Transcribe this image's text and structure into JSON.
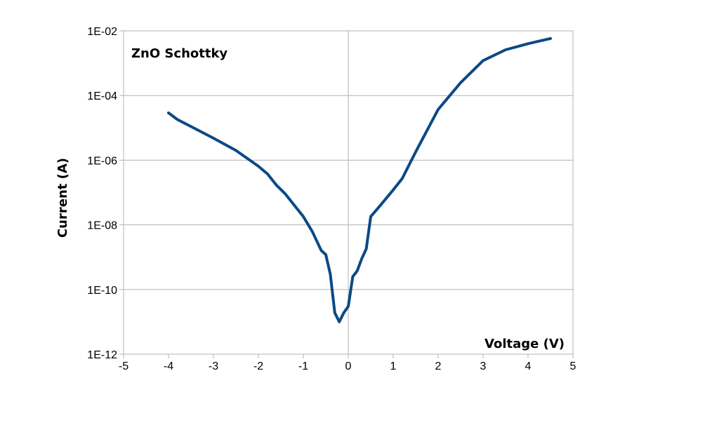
{
  "chart_data": {
    "type": "line",
    "title": "",
    "xlabel": "Voltage (V)",
    "ylabel": "Current (A)",
    "annotation": "ZnO Schottky",
    "xlim": [
      -5,
      5
    ],
    "ylim": [
      1e-12,
      0.01
    ],
    "yscale": "log",
    "grid": true,
    "xticks": [
      -5,
      -4,
      -3,
      -2,
      -1,
      0,
      1,
      2,
      3,
      4,
      5
    ],
    "xtick_labels": [
      "-5",
      "-4",
      "-3",
      "-2",
      "-1",
      "0",
      "1",
      "2",
      "3",
      "4",
      "5"
    ],
    "yticks": [
      1e-12,
      1e-10,
      1e-08,
      1e-06,
      0.0001,
      0.01
    ],
    "ytick_labels": [
      "1E-12",
      "1E-10",
      "1E-08",
      "1E-06",
      "1E-04",
      "1E-02"
    ],
    "line_color": "#0a4a85",
    "series": [
      {
        "x": [
          -4.0,
          -3.8,
          -3.5,
          -3.0,
          -2.5,
          -2.0,
          -1.8,
          -1.6,
          -1.4,
          -1.2,
          -1.0,
          -0.8,
          -0.6,
          -0.5,
          -0.4,
          -0.3,
          -0.2,
          -0.1,
          0.0,
          0.1,
          0.2,
          0.3,
          0.4,
          0.5,
          0.7,
          1.0,
          1.2,
          1.5,
          2.0,
          2.5,
          3.0,
          3.5,
          4.0,
          4.5
        ],
        "y": [
          2.9e-05,
          1.8e-05,
          1.1e-05,
          4.8e-06,
          2e-06,
          6.5e-07,
          3.8e-07,
          1.7e-07,
          9e-08,
          4e-08,
          1.8e-08,
          6.2e-09,
          1.6e-09,
          1.2e-09,
          3e-10,
          1.9e-11,
          1e-11,
          1.9e-11,
          3e-11,
          2.5e-10,
          3.8e-10,
          9e-10,
          1.8e-09,
          1.8e-08,
          3.8e-08,
          1.2e-07,
          2.7e-07,
          1.8e-06,
          3.7e-05,
          0.00025,
          0.0012,
          0.0026,
          0.004,
          0.0058
        ]
      }
    ]
  }
}
